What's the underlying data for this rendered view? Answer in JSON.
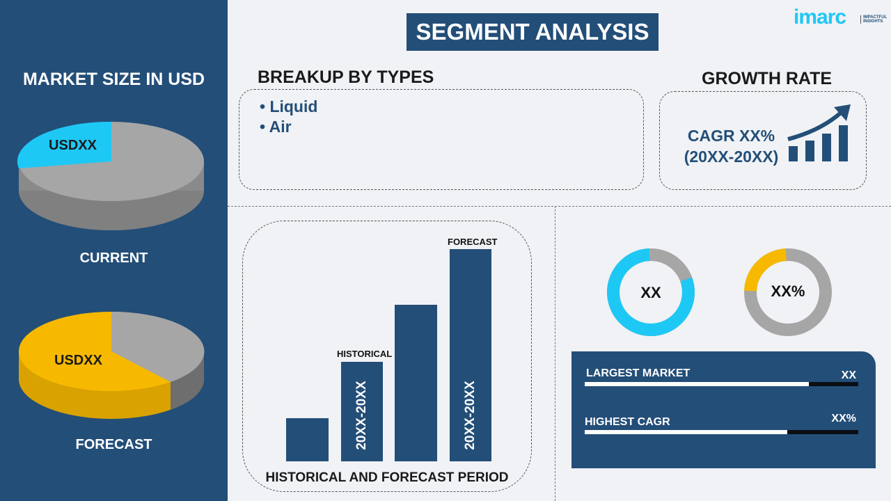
{
  "title": "SEGMENT ANALYSIS",
  "logo": {
    "text": "imarc",
    "tagline": "IMPACTFUL INSIGHTS"
  },
  "market_size": {
    "heading": "MARKET SIZE IN USD",
    "current": {
      "label": "CURRENT",
      "value": "USDXX",
      "slice_color": "#1ec8f5"
    },
    "forecast": {
      "label": "FORECAST",
      "value": "USDXX",
      "slice_color": "#f7b900"
    }
  },
  "breakup": {
    "heading": "BREAKUP BY TYPES",
    "items": [
      "• Liquid",
      "• Air"
    ]
  },
  "growth": {
    "heading": "GROWTH RATE",
    "cagr": "CAGR XX%",
    "period": "(20XX-20XX)",
    "icon": "growth-chart-arrow-icon"
  },
  "period_chart": {
    "title": "HISTORICAL AND FORECAST PERIOD",
    "historical_label": "HISTORICAL",
    "forecast_label": "FORECAST",
    "historical_range": "20XX-20XX",
    "forecast_range": "20XX-20XX"
  },
  "donuts": [
    {
      "label": "XX",
      "color": "#1ec8f5"
    },
    {
      "label": "XX%",
      "color": "#f7b900"
    }
  ],
  "kpis": [
    {
      "label": "LARGEST MARKET",
      "value": "XX",
      "fill_pct": 82
    },
    {
      "label": "HIGHEST CAGR",
      "value": "XX%",
      "fill_pct": 74
    }
  ],
  "colors": {
    "navy": "#234e78",
    "cyan": "#1ec8f5",
    "yellow": "#f7b900",
    "gray": "#a6a6a6"
  }
}
